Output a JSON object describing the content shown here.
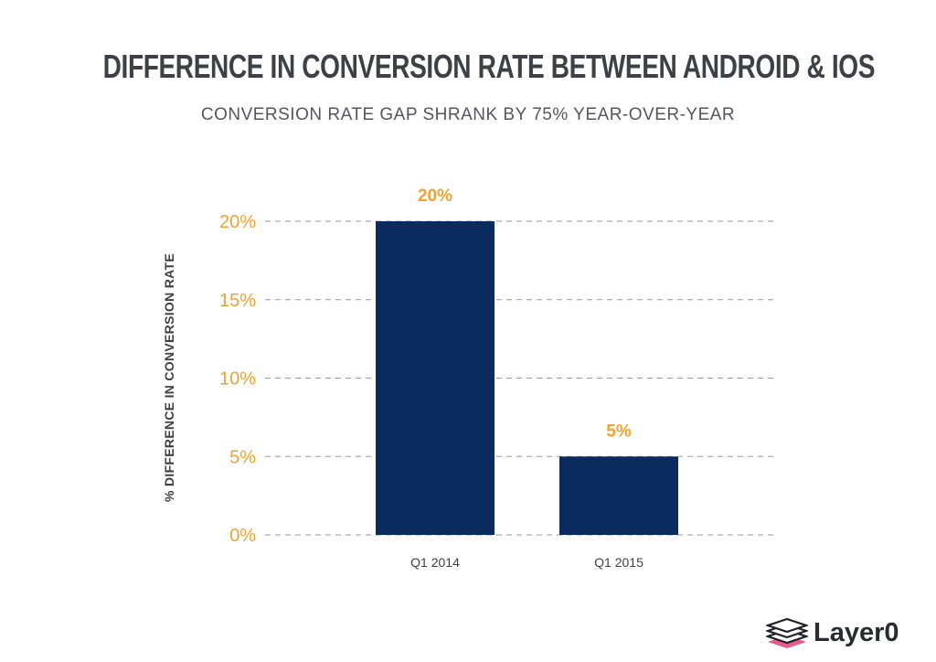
{
  "header": {
    "title": "DIFFERENCE IN CONVERSION RATE BETWEEN ANDROID & IOS",
    "subtitle": "CONVERSION RATE GAP SHRANK BY 75% YEAR-OVER-YEAR"
  },
  "chart_data": {
    "type": "bar",
    "title": "DIFFERENCE IN CONVERSION RATE BETWEEN ANDROID & IOS",
    "subtitle": "CONVERSION RATE GAP SHRANK BY 75% YEAR-OVER-YEAR",
    "xlabel": "",
    "ylabel": "% DIFFERENCE IN CONVERSION RATE",
    "categories": [
      "Q1 2014",
      "Q1 2015"
    ],
    "values": [
      20,
      5
    ],
    "data_labels": [
      "20%",
      "5%"
    ],
    "ylim": [
      0,
      20
    ],
    "yticks": [
      0,
      5,
      10,
      15,
      20
    ],
    "ytick_labels": [
      "0%",
      "5%",
      "10%",
      "15%",
      "20%"
    ],
    "grid": "dashed horizontal",
    "legend": "none"
  },
  "colors": {
    "bar": "#0b2b5e",
    "accent": "#f0a232",
    "text": "#3f4046",
    "grid": "#9a9a9a"
  },
  "logo": {
    "text": "Layer0",
    "icon": "stacked-layers-icon"
  }
}
